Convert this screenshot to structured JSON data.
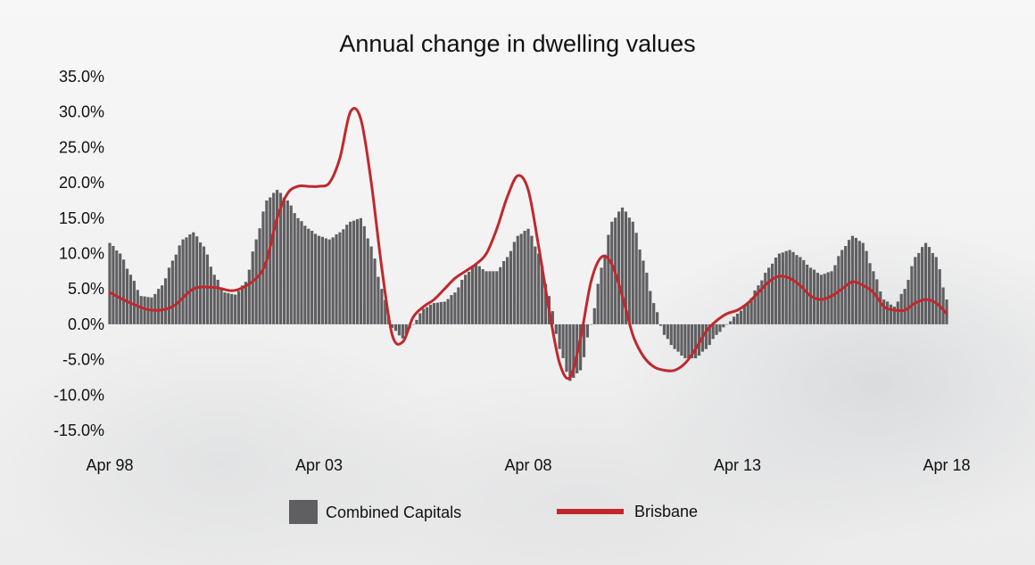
{
  "chart_data": {
    "type": "bar+line",
    "title": "Annual change in dwelling values",
    "ylim": [
      -15,
      35
    ],
    "yticks": [
      "35.0%",
      "30.0%",
      "25.0%",
      "20.0%",
      "15.0%",
      "10.0%",
      "5.0%",
      "0.0%",
      "-5.0%",
      "-10.0%",
      "-15.0%"
    ],
    "ytick_values": [
      35,
      30,
      25,
      20,
      15,
      10,
      5,
      0,
      -5,
      -10,
      -15
    ],
    "xlim": [
      1998.25,
      2018.25
    ],
    "xticks": [
      "Apr 98",
      "Apr 03",
      "Apr 08",
      "Apr 13",
      "Apr 18"
    ],
    "xtick_values": [
      1998.25,
      2003.25,
      2008.25,
      2013.25,
      2018.25
    ],
    "grid": false,
    "legend_placement": "bottom",
    "series": [
      {
        "name": "Combined Capitals",
        "type": "bar",
        "color": "#5f5f62",
        "points": [
          [
            1998.25,
            11.5
          ],
          [
            1998.5,
            10.0
          ],
          [
            1998.75,
            7.0
          ],
          [
            1999.0,
            4.0
          ],
          [
            1999.25,
            3.8
          ],
          [
            1999.5,
            5.5
          ],
          [
            1999.75,
            9.0
          ],
          [
            2000.0,
            12.0
          ],
          [
            2000.25,
            13.0
          ],
          [
            2000.5,
            11.0
          ],
          [
            2000.75,
            7.0
          ],
          [
            2001.0,
            4.5
          ],
          [
            2001.25,
            4.2
          ],
          [
            2001.5,
            6.0
          ],
          [
            2001.75,
            12.0
          ],
          [
            2002.0,
            17.5
          ],
          [
            2002.25,
            19.0
          ],
          [
            2002.5,
            17.5
          ],
          [
            2002.75,
            15.0
          ],
          [
            2003.0,
            13.5
          ],
          [
            2003.25,
            12.5
          ],
          [
            2003.5,
            12.0
          ],
          [
            2003.75,
            13.0
          ],
          [
            2004.0,
            14.5
          ],
          [
            2004.25,
            15.0
          ],
          [
            2004.5,
            11.0
          ],
          [
            2004.75,
            5.0
          ],
          [
            2005.0,
            -0.5
          ],
          [
            2005.25,
            -2.0
          ],
          [
            2005.5,
            0.0
          ],
          [
            2005.75,
            2.2
          ],
          [
            2006.0,
            3.0
          ],
          [
            2006.25,
            3.2
          ],
          [
            2006.5,
            4.5
          ],
          [
            2006.75,
            7.0
          ],
          [
            2007.0,
            8.5
          ],
          [
            2007.25,
            7.5
          ],
          [
            2007.5,
            7.5
          ],
          [
            2007.75,
            9.5
          ],
          [
            2008.0,
            12.5
          ],
          [
            2008.25,
            13.5
          ],
          [
            2008.5,
            10.0
          ],
          [
            2008.75,
            4.0
          ],
          [
            2009.0,
            -3.5
          ],
          [
            2009.25,
            -8.0
          ],
          [
            2009.5,
            -6.5
          ],
          [
            2009.75,
            0.0
          ],
          [
            2010.0,
            8.0
          ],
          [
            2010.25,
            14.5
          ],
          [
            2010.5,
            16.5
          ],
          [
            2010.75,
            14.5
          ],
          [
            2011.0,
            9.0
          ],
          [
            2011.25,
            3.0
          ],
          [
            2011.5,
            -1.5
          ],
          [
            2011.75,
            -3.5
          ],
          [
            2012.0,
            -4.8
          ],
          [
            2012.25,
            -4.8
          ],
          [
            2012.5,
            -3.5
          ],
          [
            2012.75,
            -1.5
          ],
          [
            2013.0,
            0.0
          ],
          [
            2013.25,
            1.5
          ],
          [
            2013.5,
            3.0
          ],
          [
            2013.75,
            5.5
          ],
          [
            2014.0,
            8.0
          ],
          [
            2014.25,
            10.0
          ],
          [
            2014.5,
            10.5
          ],
          [
            2014.75,
            9.5
          ],
          [
            2015.0,
            8.0
          ],
          [
            2015.25,
            7.0
          ],
          [
            2015.5,
            7.5
          ],
          [
            2015.75,
            10.5
          ],
          [
            2016.0,
            12.5
          ],
          [
            2016.25,
            11.5
          ],
          [
            2016.5,
            7.5
          ],
          [
            2016.75,
            3.5
          ],
          [
            2017.0,
            2.5
          ],
          [
            2017.25,
            5.0
          ],
          [
            2017.5,
            9.5
          ],
          [
            2017.75,
            11.5
          ],
          [
            2018.0,
            9.5
          ],
          [
            2018.25,
            3.5
          ]
        ]
      },
      {
        "name": "Brisbane",
        "type": "line",
        "color": "#c0282d",
        "points": [
          [
            1998.25,
            4.5
          ],
          [
            1998.75,
            3.0
          ],
          [
            1999.25,
            2.0
          ],
          [
            1999.75,
            2.5
          ],
          [
            2000.25,
            5.0
          ],
          [
            2000.75,
            5.2
          ],
          [
            2001.25,
            4.8
          ],
          [
            2001.75,
            6.5
          ],
          [
            2002.0,
            9.0
          ],
          [
            2002.25,
            15.0
          ],
          [
            2002.5,
            18.5
          ],
          [
            2002.75,
            19.5
          ],
          [
            2003.0,
            19.5
          ],
          [
            2003.25,
            19.5
          ],
          [
            2003.5,
            20.0
          ],
          [
            2003.75,
            23.5
          ],
          [
            2004.0,
            30.0
          ],
          [
            2004.25,
            29.0
          ],
          [
            2004.5,
            20.0
          ],
          [
            2004.75,
            8.0
          ],
          [
            2005.0,
            -1.5
          ],
          [
            2005.25,
            -2.5
          ],
          [
            2005.5,
            1.0
          ],
          [
            2005.75,
            2.5
          ],
          [
            2006.0,
            3.5
          ],
          [
            2006.25,
            5.0
          ],
          [
            2006.5,
            6.5
          ],
          [
            2006.75,
            7.5
          ],
          [
            2007.0,
            8.5
          ],
          [
            2007.25,
            10.0
          ],
          [
            2007.5,
            13.5
          ],
          [
            2007.75,
            18.0
          ],
          [
            2008.0,
            21.0
          ],
          [
            2008.25,
            19.0
          ],
          [
            2008.5,
            11.0
          ],
          [
            2008.75,
            2.0
          ],
          [
            2009.0,
            -5.5
          ],
          [
            2009.25,
            -7.5
          ],
          [
            2009.5,
            -2.0
          ],
          [
            2009.75,
            6.0
          ],
          [
            2010.0,
            9.5
          ],
          [
            2010.25,
            8.5
          ],
          [
            2010.5,
            4.0
          ],
          [
            2010.75,
            -1.5
          ],
          [
            2011.0,
            -4.5
          ],
          [
            2011.25,
            -6.0
          ],
          [
            2011.5,
            -6.5
          ],
          [
            2011.75,
            -6.5
          ],
          [
            2012.0,
            -5.5
          ],
          [
            2012.25,
            -3.5
          ],
          [
            2012.5,
            -1.0
          ],
          [
            2012.75,
            0.5
          ],
          [
            2013.0,
            1.5
          ],
          [
            2013.25,
            2.0
          ],
          [
            2013.5,
            3.0
          ],
          [
            2013.75,
            4.5
          ],
          [
            2014.0,
            6.0
          ],
          [
            2014.25,
            6.8
          ],
          [
            2014.5,
            6.5
          ],
          [
            2014.75,
            5.5
          ],
          [
            2015.0,
            4.0
          ],
          [
            2015.25,
            3.5
          ],
          [
            2015.5,
            4.0
          ],
          [
            2015.75,
            5.0
          ],
          [
            2016.0,
            6.0
          ],
          [
            2016.25,
            5.5
          ],
          [
            2016.5,
            4.5
          ],
          [
            2016.75,
            2.5
          ],
          [
            2017.0,
            2.0
          ],
          [
            2017.25,
            2.0
          ],
          [
            2017.5,
            3.0
          ],
          [
            2017.75,
            3.5
          ],
          [
            2018.0,
            3.0
          ],
          [
            2018.25,
            1.5
          ]
        ]
      }
    ]
  }
}
